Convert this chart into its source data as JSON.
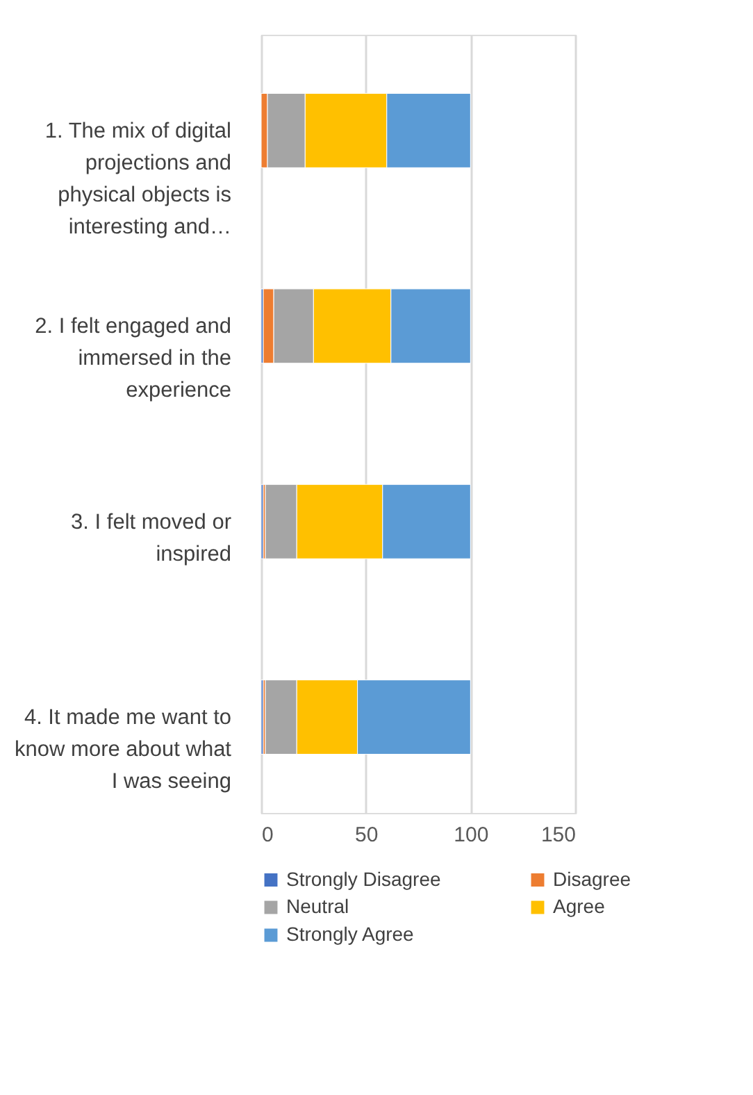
{
  "chart_data": {
    "type": "bar",
    "orientation": "horizontal",
    "stacked": true,
    "categories": [
      "1. The mix of digital\nprojections and\nphysical objects is\ninteresting and…",
      "2. I felt engaged and\nimmersed in the\nexperience",
      "3. I felt moved or\ninspired",
      "4. It made me want to\nknow more about what\nI was seeing"
    ],
    "series": [
      {
        "name": "Strongly Disagree",
        "color": "#4472c4",
        "values": [
          0,
          1,
          1,
          1
        ]
      },
      {
        "name": "Disagree",
        "color": "#ed7d31",
        "values": [
          3,
          5,
          1,
          1
        ]
      },
      {
        "name": "Neutral",
        "color": "#a5a5a5",
        "values": [
          18,
          19,
          15,
          15
        ]
      },
      {
        "name": "Agree",
        "color": "#ffc000",
        "values": [
          39,
          37,
          41,
          29
        ]
      },
      {
        "name": "Strongly Agree",
        "color": "#5b9bd5",
        "values": [
          40,
          38,
          42,
          54
        ]
      }
    ],
    "xlim": [
      0,
      150
    ],
    "xticks": [
      0,
      50,
      100,
      150
    ],
    "grid": "x",
    "legend": "bottom"
  }
}
